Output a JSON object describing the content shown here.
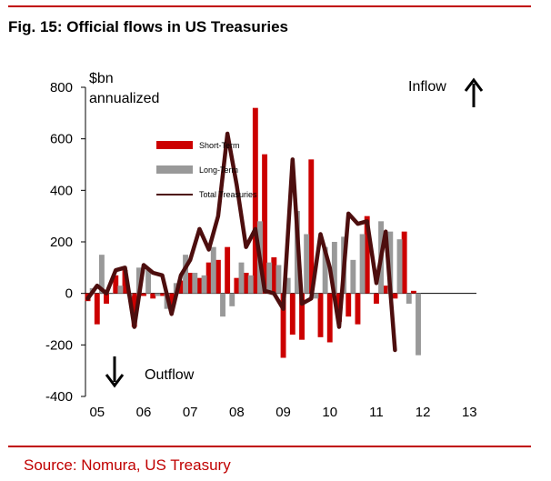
{
  "title": "Fig. 15: Official flows in US Treasuries",
  "source": "Source: Nomura, US Treasury",
  "chart_data": {
    "type": "bar",
    "ylabel_line1": "$bn",
    "ylabel_line2": "annualized",
    "ylim": [
      -400,
      800
    ],
    "yticks": [
      -400,
      -200,
      0,
      200,
      400,
      600,
      800
    ],
    "xlabels": [
      "05",
      "06",
      "07",
      "08",
      "09",
      "10",
      "11",
      "12",
      "13"
    ],
    "xlabel_positions": [
      2.5,
      12.5,
      22.5,
      32.5,
      42.5,
      52.5,
      62.5,
      72.5,
      82.5
    ],
    "n_periods": 84,
    "annotations": {
      "inflow": "Inflow",
      "outflow": "Outflow"
    },
    "colors": {
      "short_term": "#cc0000",
      "long_term": "#999999",
      "total": "#4d0e0e"
    },
    "legend": [
      "Short-Term",
      "Long-Term",
      "Total Treasuries"
    ],
    "series": [
      {
        "name": "Short-Term",
        "type": "bar",
        "points": [
          [
            0,
            -30
          ],
          [
            2,
            -120
          ],
          [
            4,
            -40
          ],
          [
            6,
            70
          ],
          [
            8,
            90
          ],
          [
            10,
            -130
          ],
          [
            12,
            -10
          ],
          [
            14,
            -20
          ],
          [
            16,
            -10
          ],
          [
            18,
            -60
          ],
          [
            20,
            50
          ],
          [
            22,
            80
          ],
          [
            24,
            60
          ],
          [
            26,
            120
          ],
          [
            28,
            130
          ],
          [
            30,
            180
          ],
          [
            32,
            60
          ],
          [
            34,
            80
          ],
          [
            36,
            720
          ],
          [
            38,
            540
          ],
          [
            40,
            140
          ],
          [
            42,
            -250
          ],
          [
            44,
            -160
          ],
          [
            46,
            -180
          ],
          [
            48,
            520
          ],
          [
            50,
            -170
          ],
          [
            52,
            -190
          ],
          [
            54,
            -110
          ],
          [
            56,
            -90
          ],
          [
            58,
            -120
          ],
          [
            60,
            300
          ],
          [
            62,
            -40
          ],
          [
            64,
            30
          ],
          [
            66,
            -20
          ],
          [
            68,
            240
          ],
          [
            70,
            10
          ]
        ]
      },
      {
        "name": "Long-Term",
        "type": "bar",
        "points": [
          [
            1,
            20
          ],
          [
            3,
            150
          ],
          [
            5,
            0
          ],
          [
            7,
            30
          ],
          [
            9,
            -10
          ],
          [
            11,
            100
          ],
          [
            13,
            90
          ],
          [
            15,
            -10
          ],
          [
            17,
            -60
          ],
          [
            19,
            40
          ],
          [
            21,
            150
          ],
          [
            23,
            80
          ],
          [
            25,
            70
          ],
          [
            27,
            180
          ],
          [
            29,
            -90
          ],
          [
            31,
            -50
          ],
          [
            33,
            120
          ],
          [
            35,
            70
          ],
          [
            37,
            280
          ],
          [
            39,
            120
          ],
          [
            41,
            110
          ],
          [
            43,
            60
          ],
          [
            45,
            320
          ],
          [
            47,
            230
          ],
          [
            49,
            -20
          ],
          [
            51,
            180
          ],
          [
            53,
            200
          ],
          [
            55,
            220
          ],
          [
            57,
            130
          ],
          [
            59,
            230
          ],
          [
            61,
            0
          ],
          [
            63,
            280
          ],
          [
            65,
            240
          ],
          [
            67,
            210
          ],
          [
            69,
            -40
          ],
          [
            71,
            -240
          ]
        ]
      },
      {
        "name": "Total Treasuries",
        "type": "line",
        "points": [
          [
            0,
            -20
          ],
          [
            2,
            30
          ],
          [
            4,
            0
          ],
          [
            6,
            90
          ],
          [
            8,
            100
          ],
          [
            10,
            -130
          ],
          [
            12,
            110
          ],
          [
            14,
            80
          ],
          [
            16,
            70
          ],
          [
            18,
            -80
          ],
          [
            20,
            70
          ],
          [
            22,
            130
          ],
          [
            24,
            250
          ],
          [
            26,
            170
          ],
          [
            28,
            300
          ],
          [
            30,
            620
          ],
          [
            32,
            420
          ],
          [
            34,
            180
          ],
          [
            36,
            250
          ],
          [
            38,
            10
          ],
          [
            40,
            0
          ],
          [
            42,
            -60
          ],
          [
            44,
            520
          ],
          [
            46,
            -40
          ],
          [
            48,
            -20
          ],
          [
            50,
            230
          ],
          [
            52,
            100
          ],
          [
            54,
            -130
          ],
          [
            56,
            310
          ],
          [
            58,
            270
          ],
          [
            60,
            280
          ],
          [
            62,
            40
          ],
          [
            64,
            240
          ],
          [
            66,
            -220
          ]
        ]
      }
    ]
  }
}
